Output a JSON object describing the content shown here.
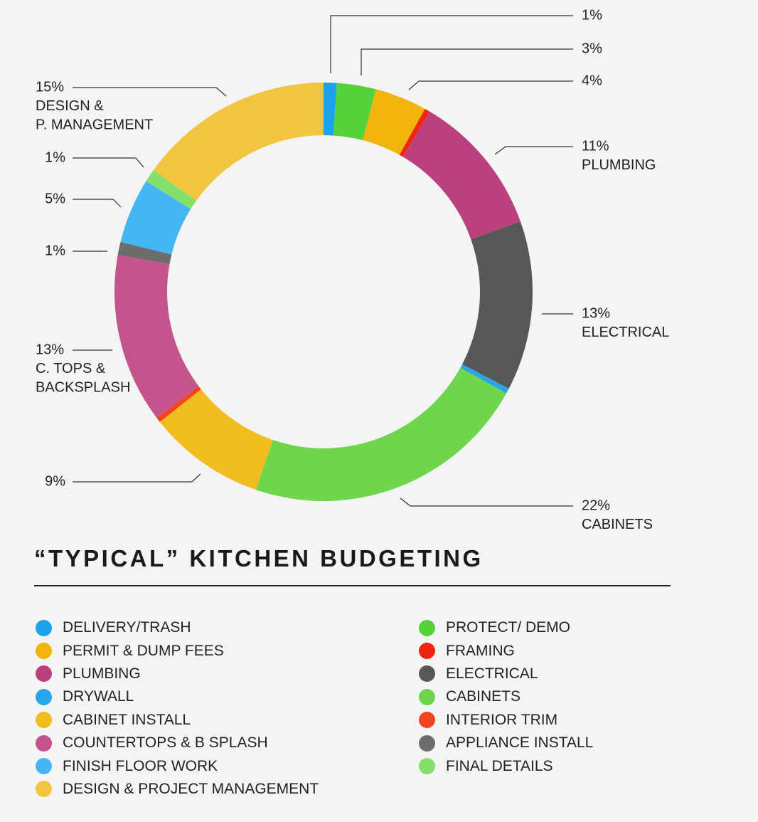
{
  "chart_data": {
    "type": "pie",
    "title": "“TYPICAL” KITCHEN BUDGETING",
    "unit": "%",
    "slices": [
      {
        "label": "DELIVERY/TRASH",
        "value": 1,
        "color": "#1aa3ea"
      },
      {
        "label": "PROTECT/ DEMO",
        "value": 3,
        "color": "#55d13a"
      },
      {
        "label": "PERMIT & DUMP FEES",
        "value": 4,
        "color": "#f0b40a"
      },
      {
        "label": "FRAMING",
        "value": 0.4,
        "color": "#f02510"
      },
      {
        "label": "PLUMBING",
        "value": 11,
        "color": "#ba417e"
      },
      {
        "label": "ELECTRICAL",
        "value": 13,
        "color": "#575757"
      },
      {
        "label": "DRYWALL",
        "value": 0.4,
        "color": "#29a6e8"
      },
      {
        "label": "CABINETS",
        "value": 22,
        "color": "#6ed64c"
      },
      {
        "label": "CABINET INSTALL",
        "value": 9,
        "color": "#f1bc20"
      },
      {
        "label": "INTERIOR TRIM",
        "value": 0.4,
        "color": "#f2441f"
      },
      {
        "label": "COUNTERTOPS & B SPLASH",
        "value": 13,
        "color": "#c4548c"
      },
      {
        "label": "APPLIANCE INSTALL",
        "value": 1,
        "color": "#6c6c6c"
      },
      {
        "label": "FINISH FLOOR WORK",
        "value": 5,
        "color": "#45b6f4"
      },
      {
        "label": "FINAL DETAILS",
        "value": 1,
        "color": "#84e06a"
      },
      {
        "label": "DESIGN & PROJECT MANAGEMENT",
        "value": 15,
        "color": "#f2c540"
      }
    ],
    "callouts": [
      {
        "slice": 0,
        "lines": [
          "1%"
        ]
      },
      {
        "slice": 1,
        "lines": [
          "3%"
        ]
      },
      {
        "slice": 2,
        "lines": [
          "4%"
        ]
      },
      {
        "slice": 4,
        "lines": [
          "11%",
          "PLUMBING"
        ]
      },
      {
        "slice": 5,
        "lines": [
          "13%",
          "ELECTRICAL"
        ]
      },
      {
        "slice": 7,
        "lines": [
          "22%",
          "CABINETS"
        ]
      },
      {
        "slice": 8,
        "lines": [
          "9%"
        ]
      },
      {
        "slice": 10,
        "lines": [
          "13%",
          "C. TOPS &",
          "BACKSPLASH"
        ]
      },
      {
        "slice": 11,
        "lines": [
          "1%"
        ]
      },
      {
        "slice": 12,
        "lines": [
          "5%"
        ]
      },
      {
        "slice": 13,
        "lines": [
          "1%"
        ]
      },
      {
        "slice": 14,
        "lines": [
          "15%",
          "DESIGN &",
          "P. MANAGEMENT"
        ]
      }
    ]
  },
  "legend": {
    "left": [
      {
        "label": "DELIVERY/TRASH",
        "color": "#1aa3ea"
      },
      {
        "label": "PERMIT & DUMP FEES",
        "color": "#f0b40a"
      },
      {
        "label": "PLUMBING",
        "color": "#ba417e"
      },
      {
        "label": "DRYWALL",
        "color": "#29a6e8"
      },
      {
        "label": "CABINET INSTALL",
        "color": "#f1bc20"
      },
      {
        "label": "COUNTERTOPS & B SPLASH",
        "color": "#c4548c"
      },
      {
        "label": "FINISH FLOOR WORK",
        "color": "#45b6f4"
      },
      {
        "label": "DESIGN & PROJECT MANAGEMENT",
        "color": "#f2c540"
      }
    ],
    "right": [
      {
        "label": "PROTECT/ DEMO",
        "color": "#55d13a"
      },
      {
        "label": "FRAMING",
        "color": "#f02510"
      },
      {
        "label": "ELECTRICAL",
        "color": "#575757"
      },
      {
        "label": "CABINETS",
        "color": "#6ed64c"
      },
      {
        "label": "INTERIOR TRIM",
        "color": "#f2441f"
      },
      {
        "label": "APPLIANCE INSTALL",
        "color": "#6c6c6c"
      },
      {
        "label": "FINAL DETAILS",
        "color": "#84e06a"
      }
    ]
  }
}
